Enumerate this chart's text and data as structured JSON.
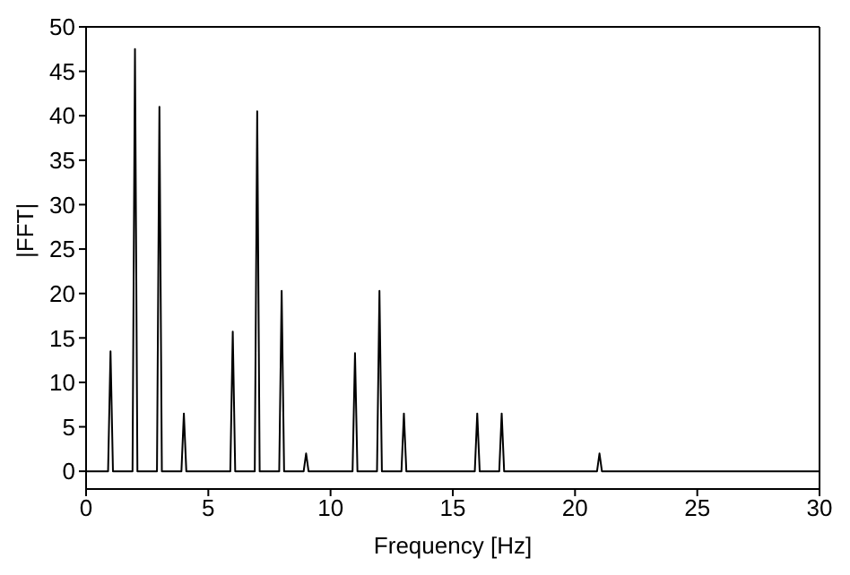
{
  "chart_data": {
    "type": "line",
    "xlabel": "Frequency [Hz]",
    "ylabel": "|FFT|",
    "xlim": [
      0,
      30
    ],
    "xticks": [
      0,
      5,
      10,
      15,
      20,
      25,
      30
    ],
    "ylim": [
      -2,
      50
    ],
    "yticks": [
      0,
      5,
      10,
      15,
      20,
      25,
      30,
      35,
      40,
      45,
      50
    ],
    "marker": "none",
    "line_style": "solid",
    "series": [
      {
        "color": "#000000",
        "x": [
          0,
          0.9,
          1,
          1.1,
          1.9,
          2,
          2.1,
          2.9,
          3,
          3.1,
          3.9,
          4,
          4.1,
          5.9,
          6,
          6.1,
          6.9,
          7,
          7.1,
          7.9,
          8,
          8.1,
          8.9,
          9,
          9.1,
          10.9,
          11,
          11.1,
          11.9,
          12,
          12.1,
          12.9,
          13,
          13.1,
          15.9,
          16,
          16.1,
          16.9,
          17,
          17.1,
          20.9,
          21,
          21.1,
          30
        ],
        "values": [
          0,
          0,
          13.5,
          0,
          0,
          47.5,
          0,
          0,
          41,
          0,
          0,
          6.5,
          0,
          0,
          15.7,
          0,
          0,
          40.5,
          0,
          0,
          20.3,
          0,
          0,
          2,
          0,
          0,
          13.3,
          0,
          0,
          20.3,
          0,
          0,
          6.5,
          0,
          0,
          6.5,
          0,
          0,
          6.5,
          0,
          0,
          2,
          0,
          0
        ]
      }
    ]
  }
}
